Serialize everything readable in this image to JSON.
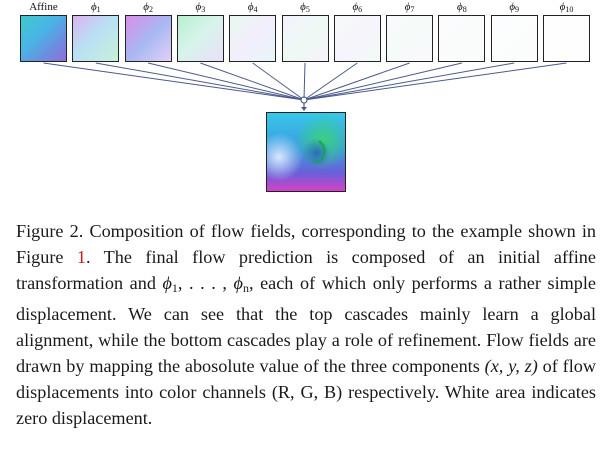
{
  "figure": {
    "tiles": [
      {
        "label": "Affine",
        "math": false
      },
      {
        "symbol": "ϕ",
        "sub": "1",
        "math": true
      },
      {
        "symbol": "ϕ",
        "sub": "2",
        "math": true
      },
      {
        "symbol": "ϕ",
        "sub": "3",
        "math": true
      },
      {
        "symbol": "ϕ",
        "sub": "4",
        "math": true
      },
      {
        "symbol": "ϕ",
        "sub": "5",
        "math": true
      },
      {
        "symbol": "ϕ",
        "sub": "6",
        "math": true
      },
      {
        "symbol": "ϕ",
        "sub": "7",
        "math": true
      },
      {
        "symbol": "ϕ",
        "sub": "8",
        "math": true
      },
      {
        "symbol": "ϕ",
        "sub": "9",
        "math": true
      },
      {
        "symbol": "ϕ",
        "sub": "10",
        "math": true
      }
    ]
  },
  "caption": {
    "lead": "Figure 2. Composition of flow fields, corresponding to the example shown in Figure ",
    "ref": "1",
    "part2": ". The final flow prediction is composed of an initial affine transformation and ",
    "math_phi": "ϕ",
    "math_sub1": "1",
    "math_sep": ", . . . , ",
    "math_subn": "n",
    "part3": ", each of which only performs a rather simple displacement. We can see that the top cascades mainly learn a global alignment, while the bottom cascades play a role of refinement. Flow fields are drawn by mapping the abosolute value of the three components ",
    "math_xyz": "(x, y, z)",
    "part4": " of flow displacements into color channels (R, G, B) respectively. White area indicates zero displacement."
  }
}
